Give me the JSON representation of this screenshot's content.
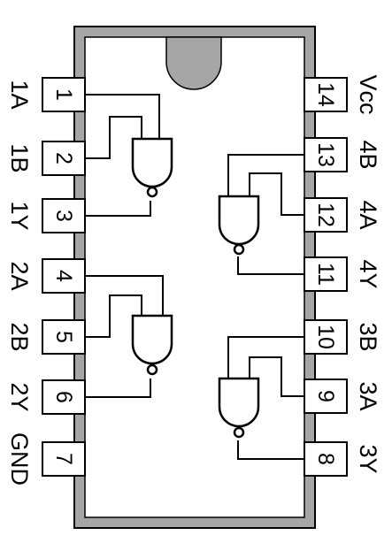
{
  "left_pins": [
    {
      "number": "1",
      "label": "1A"
    },
    {
      "number": "2",
      "label": "1B"
    },
    {
      "number": "3",
      "label": "1Y"
    },
    {
      "number": "4",
      "label": "2A"
    },
    {
      "number": "5",
      "label": "2B"
    },
    {
      "number": "6",
      "label": "2Y"
    },
    {
      "number": "7",
      "label": "GND"
    }
  ],
  "right_pins": [
    {
      "number": "14",
      "label": "Vcc"
    },
    {
      "number": "13",
      "label": "4B"
    },
    {
      "number": "12",
      "label": "4A"
    },
    {
      "number": "11",
      "label": "4Y"
    },
    {
      "number": "10",
      "label": "3B"
    },
    {
      "number": "9",
      "label": "3A"
    },
    {
      "number": "8",
      "label": "3Y"
    }
  ],
  "colors": {
    "body_fill": "#a6a6a6",
    "outline": "#000000"
  }
}
